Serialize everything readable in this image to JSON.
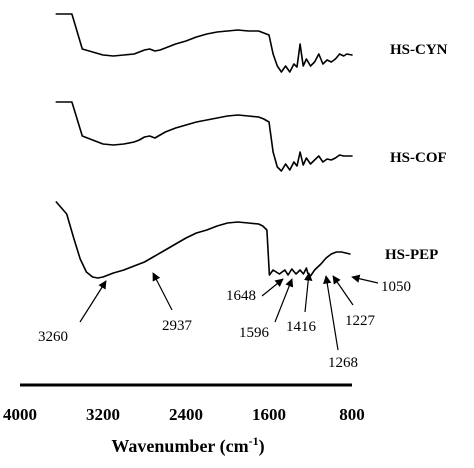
{
  "chart_data": {
    "type": "line",
    "xlabel": "Wavenumber (cm",
    "xlabel_sup": "-1",
    "xlabel_close": ")",
    "xlim": [
      4000,
      800
    ],
    "x_ticks": [
      "4000",
      "3200",
      "2400",
      "1600",
      "800"
    ],
    "y_axis_shown": false,
    "grid": false,
    "legend": "none",
    "series": [
      {
        "name": "HS-CYN",
        "x": [
          3650,
          3500,
          3400,
          3300,
          3200,
          3100,
          3000,
          2900,
          2850,
          2800,
          2750,
          2700,
          2650,
          2600,
          2500,
          2400,
          2300,
          2200,
          2100,
          2000,
          1900,
          1800,
          1700,
          1650,
          1600,
          1560,
          1520,
          1480,
          1440,
          1400,
          1360,
          1330,
          1300,
          1270,
          1240,
          1200,
          1160,
          1120,
          1080,
          1040,
          1000,
          960,
          920,
          880,
          850,
          800
        ],
        "y": [
          10,
          10,
          45,
          48,
          51,
          52,
          51,
          50,
          48,
          46,
          45,
          47,
          46,
          44,
          40,
          37,
          33,
          30,
          28,
          27,
          26,
          27,
          27,
          29,
          31,
          50,
          62,
          68,
          62,
          68,
          60,
          63,
          40,
          62,
          55,
          62,
          58,
          50,
          60,
          56,
          58,
          55,
          50,
          52,
          50,
          51
        ]
      },
      {
        "name": "HS-COF",
        "x": [
          3650,
          3500,
          3400,
          3300,
          3200,
          3100,
          3000,
          2900,
          2850,
          2800,
          2750,
          2700,
          2650,
          2600,
          2500,
          2400,
          2300,
          2200,
          2100,
          2000,
          1900,
          1800,
          1700,
          1650,
          1600,
          1560,
          1520,
          1480,
          1440,
          1400,
          1360,
          1330,
          1300,
          1270,
          1240,
          1200,
          1160,
          1120,
          1080,
          1040,
          1000,
          960,
          920,
          880,
          850,
          800
        ],
        "y": [
          98,
          98,
          132,
          136,
          140,
          141,
          140,
          138,
          136,
          133,
          132,
          134,
          131,
          128,
          124,
          121,
          118,
          116,
          114,
          112,
          111,
          112,
          113,
          115,
          118,
          148,
          163,
          167,
          160,
          166,
          158,
          162,
          148,
          161,
          154,
          160,
          156,
          152,
          158,
          155,
          156,
          154,
          151,
          152,
          152,
          152
        ]
      },
      {
        "name": "HS-PEP",
        "x": [
          3650,
          3550,
          3480,
          3420,
          3360,
          3300,
          3250,
          3200,
          3150,
          3100,
          3000,
          2900,
          2850,
          2800,
          2700,
          2600,
          2500,
          2400,
          2300,
          2200,
          2100,
          2000,
          1900,
          1800,
          1700,
          1660,
          1620,
          1596,
          1560,
          1500,
          1448,
          1416,
          1380,
          1340,
          1300,
          1268,
          1240,
          1227,
          1200,
          1160,
          1100,
          1050,
          1000,
          950,
          900,
          860,
          820
        ],
        "y": [
          198,
          210,
          235,
          255,
          268,
          273,
          274,
          273,
          271,
          269,
          266,
          262,
          260,
          258,
          252,
          246,
          240,
          234,
          229,
          226,
          222,
          219,
          218,
          219,
          220,
          222,
          226,
          271,
          266,
          270,
          266,
          271,
          265,
          270,
          266,
          270,
          264,
          269,
          272,
          266,
          260,
          254,
          250,
          248,
          248,
          249,
          250
        ]
      }
    ],
    "annotations": [
      {
        "label": "3260"
      },
      {
        "label": "2937"
      },
      {
        "label": "1648"
      },
      {
        "label": "1596"
      },
      {
        "label": "1416"
      },
      {
        "label": "1268"
      },
      {
        "label": "1227"
      },
      {
        "label": "1050"
      }
    ]
  }
}
